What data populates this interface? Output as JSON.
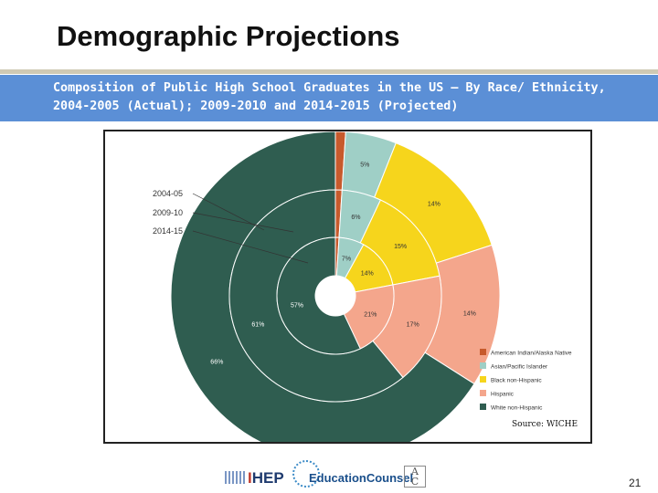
{
  "slide": {
    "title": "Demographic Projections",
    "subtitle_line1": "Composition of Public High School Graduates in the US – By Race/ Ethnicity,",
    "subtitle_line2": "2004-2005 (Actual); 2009-2010 and 2014-2015 (Projected)",
    "page_number": "21",
    "source": "Source: WICHE",
    "accent_color": "#5b8fd6"
  },
  "footer": {
    "logos": [
      "IHEP",
      "EducationCounsel",
      "AACU"
    ]
  },
  "chart_data": {
    "type": "pie",
    "subtype": "nested-donut",
    "rings": [
      "2004-05",
      "2009-10",
      "2014-15"
    ],
    "legend": [
      {
        "name": "American Indian/Alaska Native",
        "color": "#c75a2c"
      },
      {
        "name": "Asian/Pacific Islander",
        "color": "#9fcfc6"
      },
      {
        "name": "Black non-Hispanic",
        "color": "#f6d51c"
      },
      {
        "name": "Hispanic",
        "color": "#f4a68c"
      },
      {
        "name": "White non-Hispanic",
        "color": "#2f5d50"
      }
    ],
    "legend_placement": "bottom-right",
    "series": [
      {
        "ring": "2004-05",
        "values": [
          1,
          5,
          14,
          14,
          66
        ]
      },
      {
        "ring": "2009-10",
        "values": [
          1,
          6,
          15,
          17,
          61
        ]
      },
      {
        "ring": "2014-15",
        "values": [
          1,
          7,
          14,
          21,
          57
        ]
      }
    ],
    "data_labels": [
      {
        "text": "1%",
        "ring": "2004-05",
        "category": "American Indian/Alaska Native"
      },
      {
        "text": "5%",
        "ring": "2004-05",
        "category": "Asian/Pacific Islander"
      },
      {
        "text": "14%",
        "ring": "2004-05",
        "category": "Black non-Hispanic"
      },
      {
        "text": "14%",
        "ring": "2004-05",
        "category": "Hispanic"
      },
      {
        "text": "66%",
        "ring": "2004-05",
        "category": "White non-Hispanic"
      },
      {
        "text": "6%",
        "ring": "2009-10",
        "category": "Asian/Pacific Islander"
      },
      {
        "text": "15%",
        "ring": "2009-10",
        "category": "Black non-Hispanic"
      },
      {
        "text": "17%",
        "ring": "2009-10",
        "category": "Hispanic"
      },
      {
        "text": "61%",
        "ring": "2009-10",
        "category": "White non-Hispanic"
      },
      {
        "text": "7%",
        "ring": "2014-15",
        "category": "Asian/Pacific Islander"
      },
      {
        "text": "14%",
        "ring": "2014-15",
        "category": "Black non-Hispanic"
      },
      {
        "text": "21%",
        "ring": "2014-15",
        "category": "Hispanic"
      },
      {
        "text": "57%",
        "ring": "2014-15",
        "category": "White non-Hispanic"
      }
    ]
  }
}
